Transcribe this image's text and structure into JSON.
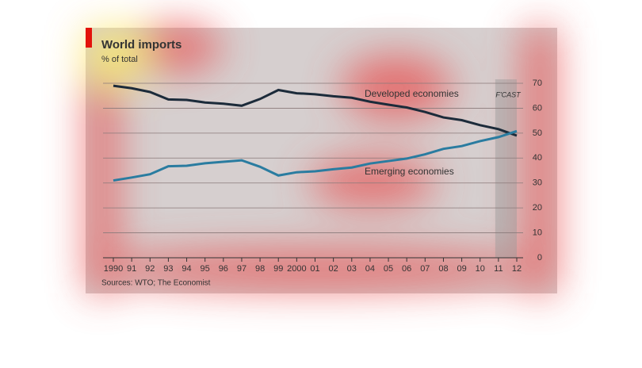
{
  "chart_data": {
    "type": "line",
    "title": "World imports",
    "subtitle": "% of total",
    "source": "Sources: WTO; The Economist",
    "categories": [
      "1990",
      "91",
      "92",
      "93",
      "94",
      "95",
      "96",
      "97",
      "98",
      "99",
      "2000",
      "01",
      "02",
      "03",
      "04",
      "05",
      "06",
      "07",
      "08",
      "09",
      "10",
      "11",
      "12"
    ],
    "series": [
      {
        "name": "Developed economies",
        "color": "#1c2b3a",
        "values": [
          69,
          68,
          66.5,
          63.5,
          63.3,
          62.3,
          61.8,
          61,
          63.7,
          67.3,
          66,
          65.6,
          64.8,
          64.2,
          62.6,
          61.4,
          60.3,
          58.5,
          56.3,
          55.2,
          53.2,
          51.6,
          49
        ]
      },
      {
        "name": "Emerging economies",
        "color": "#2a7ca0",
        "values": [
          31,
          32.2,
          33.5,
          36.7,
          36.9,
          37.9,
          38.5,
          39.1,
          36.5,
          33,
          34.3,
          34.7,
          35.5,
          36.2,
          37.8,
          38.8,
          39.8,
          41.5,
          43.7,
          44.8,
          46.8,
          48.4,
          50.8
        ]
      }
    ],
    "forecast": {
      "label": "F'CAST",
      "start": "11"
    },
    "ylim": [
      0,
      70
    ],
    "yticks": [
      0,
      10,
      20,
      30,
      40,
      50,
      60,
      70
    ],
    "grid": true
  }
}
